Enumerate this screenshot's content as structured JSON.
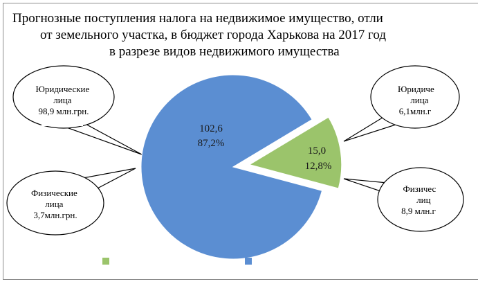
{
  "chart_data": {
    "type": "pie",
    "title": [
      "Прогнозные поступления налога на недвижимое имущество,  отли",
      "от земельного участка,  в бюджет города Харькова на 2017 год",
      "в разрезе видов недвижимого имущества"
    ],
    "slices": [
      {
        "value": 102.6,
        "value_label": "102,6",
        "percent_label": "87,2%",
        "color": "#5b8ed2"
      },
      {
        "value": 15.0,
        "value_label": "15,0",
        "percent_label": "12,8%",
        "color": "#9bc46b"
      }
    ],
    "legend": {
      "position": "bottom",
      "entries": [
        "",
        ""
      ]
    },
    "callouts": [
      {
        "lines": [
          "Юридические",
          "лица",
          "98,9 млн.грн."
        ]
      },
      {
        "lines": [
          "Физические",
          "лица",
          "3,7млн.грн."
        ]
      },
      {
        "lines": [
          "Юридиче",
          "лица",
          "6,1млн.г"
        ]
      },
      {
        "lines": [
          "Физичес",
          "лиц",
          "8,9 млн.г"
        ]
      }
    ]
  }
}
